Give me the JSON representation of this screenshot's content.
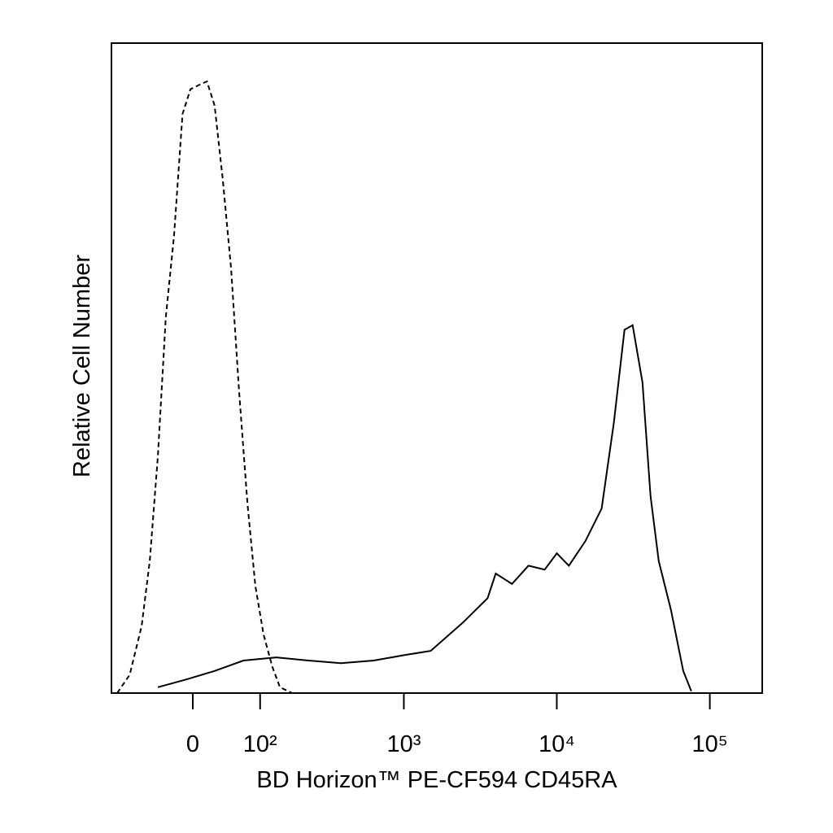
{
  "chart_data": {
    "type": "histogram-overlay",
    "xlabel": "BD Horizon™ PE-CF594 CD45RA",
    "ylabel": "Relative Cell Number",
    "xscale": "biexponential",
    "xlim": [
      -130,
      220000
    ],
    "ylim": [
      0,
      100
    ],
    "xticks": [
      {
        "value": 0,
        "label": "0"
      },
      {
        "value": 100,
        "label": "10²"
      },
      {
        "value": 1000,
        "label": "10³"
      },
      {
        "value": 10000,
        "label": "10⁴"
      },
      {
        "value": 100000,
        "label": "10⁵"
      }
    ],
    "series": [
      {
        "color": "#000000",
        "dashed": true,
        "x": [
          -117,
          -92,
          -71,
          -58,
          -46,
          -35,
          -24,
          -13,
          -3,
          7,
          18,
          28,
          39,
          51,
          63,
          77,
          91,
          107,
          126,
          144,
          177
        ],
        "values": [
          0,
          2.8,
          10.3,
          20.3,
          36.5,
          57.8,
          70.3,
          89.1,
          92.9,
          93.5,
          94.1,
          90.4,
          79.1,
          65.3,
          46.6,
          29,
          16.5,
          9,
          4,
          0.9,
          0
        ]
      },
      {
        "color": "#000000",
        "dashed": false,
        "x": [
          -46,
          -8,
          28,
          70,
          135,
          231,
          384,
          633,
          1040,
          1500,
          2450,
          3530,
          3990,
          5100,
          6530,
          8340,
          10010,
          12000,
          15400,
          19650,
          23600,
          27700,
          31300,
          36300,
          41000,
          46400,
          55700,
          67000,
          75700
        ],
        "values": [
          0.9,
          2.1,
          3.4,
          5,
          5.5,
          5,
          4.6,
          5,
          5.9,
          6.5,
          10.9,
          14.6,
          18.4,
          16.8,
          19.6,
          19,
          21.5,
          19.6,
          23.4,
          28.4,
          41.6,
          55.9,
          56.6,
          47.8,
          30.3,
          20.3,
          12.8,
          3.4,
          0.3
        ]
      }
    ]
  }
}
